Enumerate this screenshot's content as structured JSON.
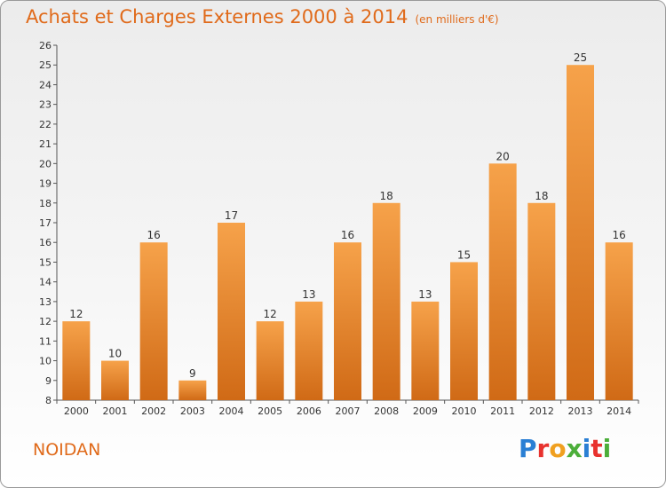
{
  "header": {
    "title": "Achats et Charges Externes 2000 à 2014",
    "unit_note": "(en milliers d'€)"
  },
  "commune": "NOIDAN",
  "logo": {
    "text": "Proxiti",
    "letters": [
      {
        "char": "P",
        "color": "#2a7fd4"
      },
      {
        "char": "r",
        "color": "#e8322e"
      },
      {
        "char": "o",
        "color": "#f0a020"
      },
      {
        "char": "x",
        "color": "#4cae3a"
      },
      {
        "char": "i",
        "color": "#2a7fd4"
      },
      {
        "char": "t",
        "color": "#e8322e"
      },
      {
        "char": "i",
        "color": "#4cae3a"
      }
    ]
  },
  "colors": {
    "bar_light": "#f6a24a",
    "bar_dark": "#d06a16",
    "accent": "#e06a1a"
  },
  "chart_data": {
    "type": "bar",
    "title": "Achats et Charges Externes 2000 à 2014",
    "subtitle": "(en milliers d'€)",
    "xlabel": "",
    "ylabel": "",
    "categories": [
      "2000",
      "2001",
      "2002",
      "2003",
      "2004",
      "2005",
      "2006",
      "2007",
      "2008",
      "2009",
      "2010",
      "2011",
      "2012",
      "2013",
      "2014"
    ],
    "values": [
      12,
      10,
      16,
      9,
      17,
      12,
      13,
      16,
      18,
      13,
      15,
      20,
      18,
      25,
      16
    ],
    "ylim": [
      8,
      26
    ],
    "yticks": [
      8,
      9,
      10,
      11,
      12,
      13,
      14,
      15,
      16,
      17,
      18,
      19,
      20,
      21,
      22,
      23,
      24,
      25,
      26
    ],
    "grid": false,
    "legend": "none"
  }
}
